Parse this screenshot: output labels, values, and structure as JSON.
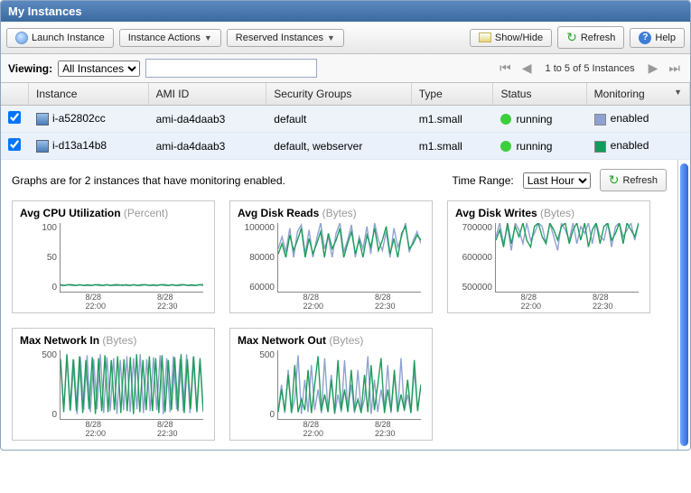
{
  "panel_title": "My Instances",
  "toolbar1": {
    "launch": "Launch Instance",
    "actions": "Instance Actions",
    "reserved": "Reserved Instances",
    "showhide": "Show/Hide",
    "refresh": "Refresh",
    "help": "Help"
  },
  "toolbar2": {
    "viewing_label": "Viewing:",
    "filter": "All Instances",
    "search_value": "",
    "pager_text": "1 to 5 of 5 Instances"
  },
  "columns": [
    "",
    "Instance",
    "AMI ID",
    "Security Groups",
    "Type",
    "Status",
    "Monitoring"
  ],
  "rows": [
    {
      "checked": true,
      "instance": "i-a52802cc",
      "ami": "ami-da4daab3",
      "security_groups": "default",
      "type": "m1.small",
      "status_text": "running",
      "status_color": "#3dce3d",
      "monitoring_text": "enabled",
      "monitoring_color": "#8fa2cf"
    },
    {
      "checked": true,
      "instance": "i-d13a14b8",
      "ami": "ami-da4daab3",
      "security_groups": "default, webserver",
      "type": "m1.small",
      "status_text": "running",
      "status_color": "#3dce3d",
      "monitoring_text": "enabled",
      "monitoring_color": "#109c5b"
    }
  ],
  "detail": {
    "caption": "Graphs are for 2 instances that have monitoring enabled.",
    "time_range_label": "Time Range:",
    "time_range_value": "Last Hour",
    "refresh": "Refresh"
  },
  "chart_colors": {
    "series_a": "#8fa2cf",
    "series_b": "#1f9c5b",
    "axis": "#888888"
  },
  "charts": [
    {
      "type": "line",
      "title": "Avg CPU Utilization",
      "unit": "(Percent)",
      "ylim": [
        0,
        100
      ],
      "yticks": [
        "100",
        "50",
        "0"
      ],
      "xticks": [
        "8/28\n22:00",
        "8/28\n22:30"
      ],
      "series_a": [
        9,
        9,
        10,
        9,
        9,
        10,
        9,
        9,
        9,
        10,
        9,
        9,
        10,
        9,
        9,
        9,
        10,
        9,
        9,
        10,
        9,
        9,
        10,
        9,
        9,
        9,
        10,
        9,
        9,
        10,
        9,
        9,
        10,
        9,
        9,
        9,
        10,
        9
      ],
      "series_b": [
        10,
        9,
        10,
        10,
        9,
        10,
        9,
        10,
        9,
        10,
        10,
        9,
        10,
        9,
        10,
        10,
        9,
        10,
        9,
        10,
        9,
        10,
        10,
        9,
        10,
        9,
        10,
        10,
        9,
        10,
        9,
        10,
        10,
        9,
        10,
        9,
        10,
        10
      ]
    },
    {
      "type": "line",
      "title": "Avg Disk Reads",
      "unit": "(Bytes)",
      "ylim": [
        60000,
        100000
      ],
      "yticks": [
        "100000",
        "80000",
        "60000"
      ],
      "xticks": [
        "8/28\n22:00",
        "8/28\n22:30"
      ],
      "series_a": [
        85000,
        92000,
        83000,
        97000,
        80000,
        95000,
        99000,
        82000,
        96000,
        80000,
        91000,
        100000,
        85000,
        92000,
        80000,
        94000,
        100000,
        83000,
        90000,
        99000,
        80000,
        92000,
        85000,
        98000,
        82000,
        100000,
        90000,
        84000,
        95000,
        80000,
        97000,
        86000,
        92000,
        100000,
        83000,
        90000,
        95000,
        88000
      ],
      "series_b": [
        82000,
        88000,
        80000,
        93000,
        84000,
        90000,
        97000,
        80000,
        91000,
        82000,
        88000,
        95000,
        80000,
        94000,
        85000,
        90000,
        97000,
        80000,
        88000,
        95000,
        82000,
        90000,
        80000,
        93000,
        86000,
        97000,
        84000,
        90000,
        98000,
        82000,
        91000,
        80000,
        94000,
        98000,
        85000,
        88000,
        93000,
        90000
      ]
    },
    {
      "type": "line",
      "title": "Avg Disk Writes",
      "unit": "(Bytes)",
      "ylim": [
        500000,
        700000
      ],
      "yticks": [
        "700000",
        "600000",
        "500000"
      ],
      "xticks": [
        "8/28\n22:00",
        "8/28\n22:30"
      ],
      "series_a": [
        660000,
        700000,
        640000,
        690000,
        620000,
        700000,
        680000,
        640000,
        700000,
        650000,
        670000,
        700000,
        690000,
        640000,
        700000,
        660000,
        620000,
        700000,
        680000,
        650000,
        700000,
        640000,
        690000,
        670000,
        700000,
        640000,
        700000,
        660000,
        650000,
        700000,
        630000,
        690000,
        700000,
        660000,
        680000,
        700000,
        650000,
        700000
      ],
      "series_b": [
        650000,
        680000,
        630000,
        700000,
        640000,
        690000,
        660000,
        700000,
        650000,
        630000,
        690000,
        700000,
        660000,
        640000,
        700000,
        680000,
        650000,
        690000,
        700000,
        640000,
        680000,
        700000,
        650000,
        700000,
        630000,
        680000,
        700000,
        640000,
        690000,
        700000,
        650000,
        670000,
        700000,
        640000,
        700000,
        680000,
        660000,
        700000
      ]
    },
    {
      "type": "spike",
      "title": "Max Network In",
      "unit": "(Bytes)",
      "ylim": [
        0,
        700
      ],
      "yticks": [
        "500",
        "0"
      ],
      "xticks": [
        "8/28\n22:00",
        "8/28\n22:30"
      ],
      "series_a": [
        620,
        100,
        640,
        80,
        600,
        50,
        630,
        90,
        650,
        70,
        610,
        100,
        660,
        60,
        630,
        80,
        620,
        50,
        600,
        90,
        640,
        70,
        620,
        100,
        660,
        60,
        610,
        80,
        630,
        90,
        650,
        50,
        620,
        70,
        640,
        100,
        610,
        80,
        660,
        60,
        630,
        90,
        600,
        70
      ],
      "series_b": [
        600,
        70,
        660,
        90,
        610,
        80,
        640,
        60,
        600,
        100,
        630,
        50,
        620,
        80,
        650,
        70,
        600,
        90,
        640,
        60,
        610,
        80,
        630,
        50,
        660,
        70,
        600,
        90,
        640,
        80,
        620,
        60,
        650,
        70,
        600,
        90,
        630,
        80,
        660,
        60,
        610,
        100,
        640,
        70,
        620,
        80
      ]
    },
    {
      "type": "spike",
      "title": "Max Network Out",
      "unit": "(Bytes)",
      "ylim": [
        0,
        700
      ],
      "yticks": [
        "500",
        "0"
      ],
      "xticks": [
        "8/28\n22:00",
        "8/28\n22:30"
      ],
      "series_a": [
        80,
        350,
        60,
        500,
        70,
        200,
        650,
        50,
        400,
        70,
        550,
        90,
        300,
        60,
        620,
        80,
        450,
        50,
        250,
        70,
        600,
        90,
        350,
        60,
        500,
        80,
        200,
        640,
        50,
        400,
        70,
        300,
        90,
        550,
        60,
        450,
        70,
        620,
        80,
        250,
        60,
        500,
        90,
        350
      ],
      "series_b": [
        70,
        300,
        80,
        450,
        60,
        550,
        70,
        200,
        90,
        500,
        60,
        350,
        640,
        80,
        250,
        70,
        400,
        60,
        600,
        90,
        300,
        70,
        500,
        80,
        200,
        60,
        450,
        70,
        550,
        90,
        350,
        620,
        60,
        300,
        80,
        500,
        70,
        250,
        90,
        400,
        60,
        600,
        80,
        350
      ]
    }
  ]
}
